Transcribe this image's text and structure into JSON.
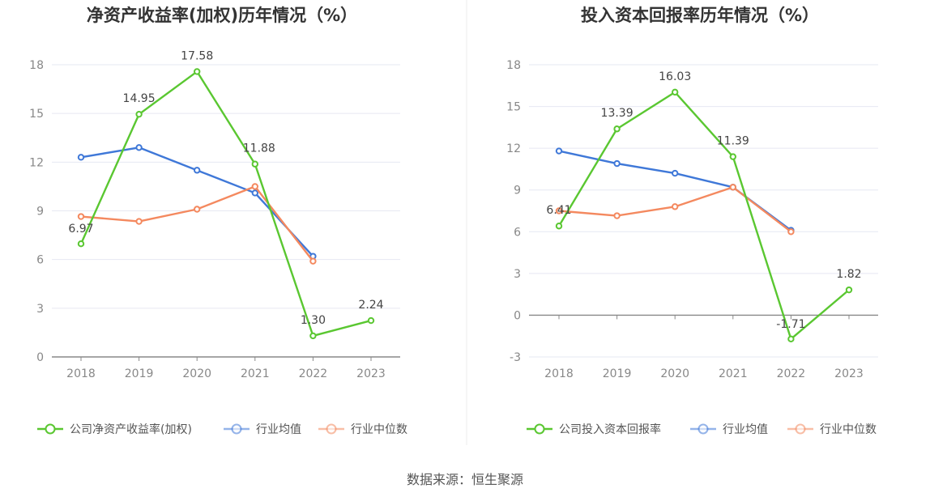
{
  "source": "数据来源：恒生聚源",
  "charts": [
    {
      "title": "净资产收益率(加权)历年情况（%）",
      "chart_data": {
        "type": "line",
        "categories": [
          "2018",
          "2019",
          "2020",
          "2021",
          "2022",
          "2023"
        ],
        "ylim": [
          0,
          18
        ],
        "yticks": [
          0,
          3,
          6,
          9,
          12,
          15,
          18
        ],
        "grid": true,
        "legend_position": "bottom",
        "series": [
          {
            "name": "公司净资产收益率(加权)",
            "color": "#5ac731",
            "values": [
              6.97,
              14.95,
              17.58,
              11.88,
              1.3,
              2.24
            ],
            "labels": [
              "6.97",
              "14.95",
              "17.58",
              "11.88",
              "1.30",
              "2.24"
            ]
          },
          {
            "name": "行业均值",
            "color": "#3f78d8",
            "values": [
              12.3,
              12.9,
              11.5,
              10.1,
              6.2,
              null
            ]
          },
          {
            "name": "行业中位数",
            "color": "#f4895f",
            "values": [
              8.65,
              8.35,
              9.1,
              10.5,
              5.9,
              null
            ]
          }
        ]
      }
    },
    {
      "title": "投入资本回报率历年情况（%）",
      "chart_data": {
        "type": "line",
        "categories": [
          "2018",
          "2019",
          "2020",
          "2021",
          "2022",
          "2023"
        ],
        "ylim": [
          -3,
          18
        ],
        "yticks": [
          -3,
          0,
          3,
          6,
          9,
          12,
          15,
          18
        ],
        "grid": true,
        "legend_position": "bottom",
        "series": [
          {
            "name": "公司投入资本回报率",
            "color": "#5ac731",
            "values": [
              6.41,
              13.39,
              16.03,
              11.39,
              -1.71,
              1.82
            ],
            "labels": [
              "6.41",
              "13.39",
              "16.03",
              "11.39",
              "-1.71",
              "1.82"
            ]
          },
          {
            "name": "行业均值",
            "color": "#3f78d8",
            "values": [
              11.8,
              10.9,
              10.2,
              9.2,
              6.1,
              null
            ]
          },
          {
            "name": "行业中位数",
            "color": "#f4895f",
            "values": [
              7.5,
              7.15,
              7.8,
              9.2,
              6.0,
              null
            ]
          }
        ]
      }
    }
  ]
}
